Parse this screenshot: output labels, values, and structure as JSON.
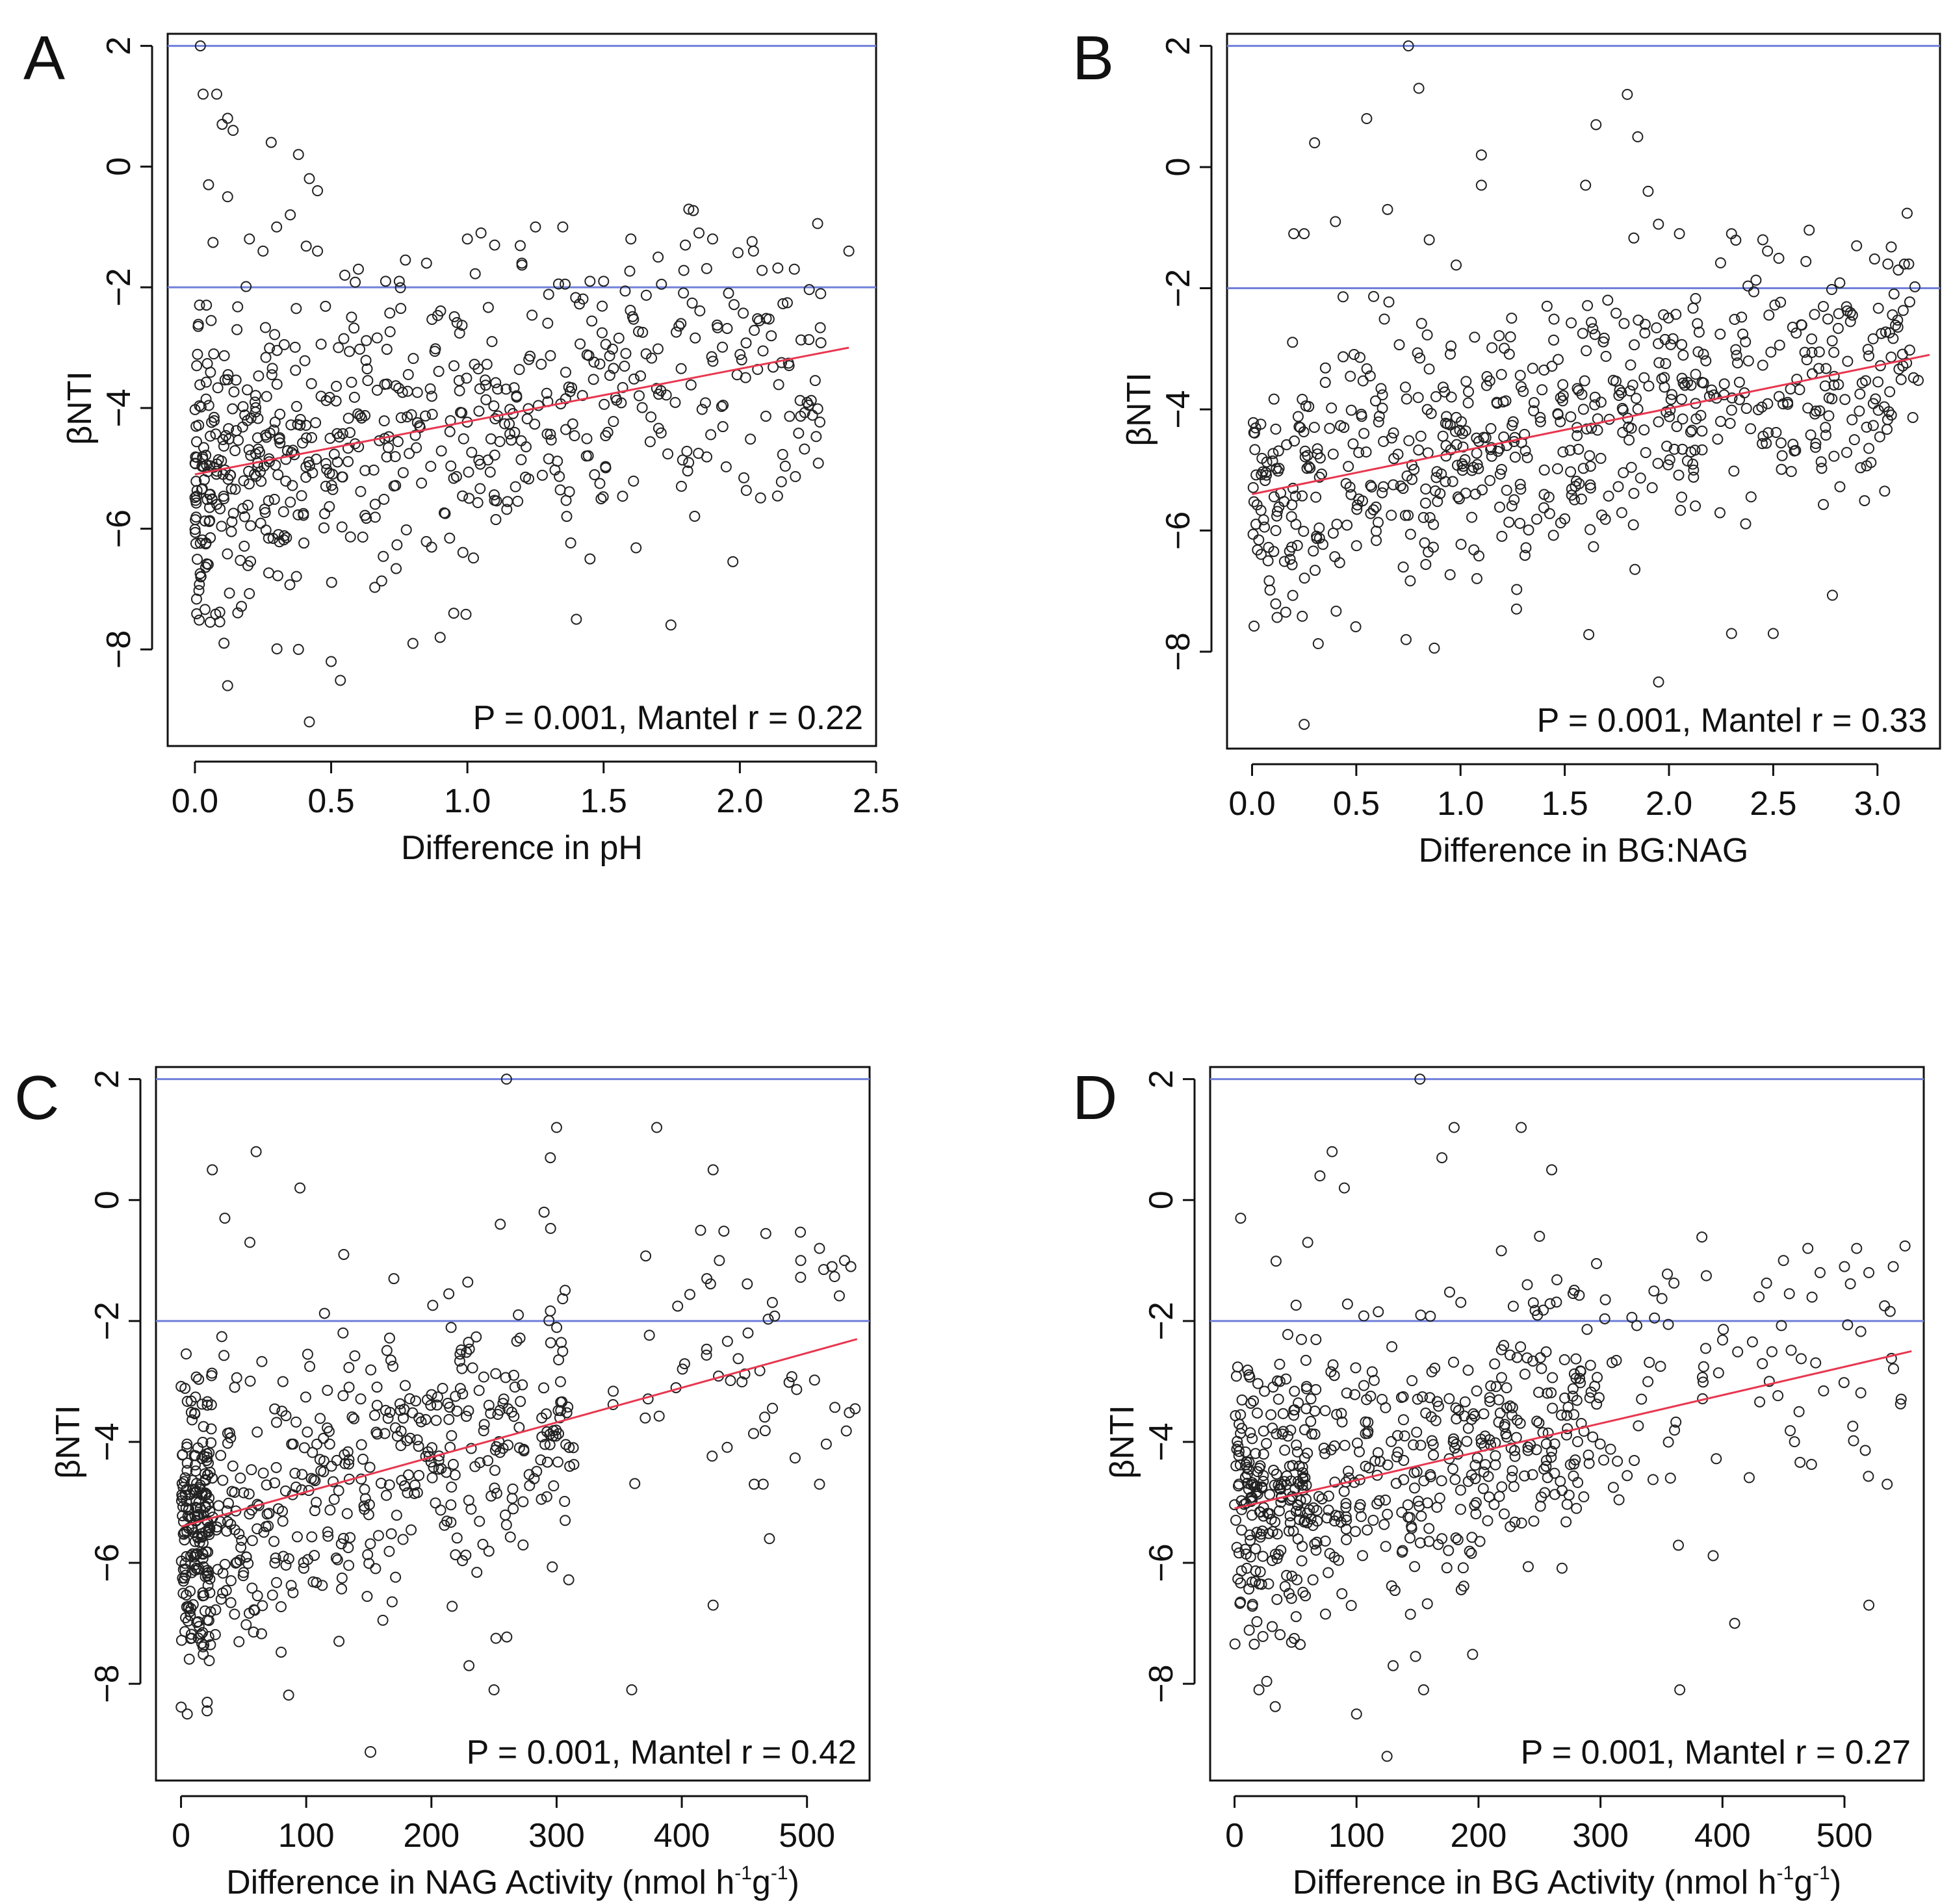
{
  "figure": {
    "colors": {
      "points": "#222222",
      "threshold_line": "#6f7fd9",
      "fit_line": "#e8374f",
      "axis": "#111111"
    }
  },
  "chart_data": [
    {
      "panel": "A",
      "type": "scatter",
      "title": "",
      "xlabel": "Difference in pH",
      "xlabel_super": [],
      "ylabel": "βNTI",
      "xlim": [
        -0.1,
        2.5
      ],
      "ylim": [
        -9.6,
        2.2
      ],
      "xticks": [
        0.0,
        0.5,
        1.0,
        1.5,
        2.0,
        2.5
      ],
      "xtick_labels": [
        "0.0",
        "0.5",
        "1.0",
        "1.5",
        "2.0",
        "2.5"
      ],
      "yticks": [
        -8,
        -6,
        -4,
        -2,
        0,
        2
      ],
      "ytick_labels": [
        "−8",
        "−6",
        "−4",
        "−2",
        "0",
        "2"
      ],
      "hlines": [
        2,
        -2
      ],
      "fit_line": {
        "x": [
          0.0,
          2.4
        ],
        "y": [
          -5.1,
          -3.0
        ]
      },
      "annotation": "P = 0.001, Mantel r = 0.22",
      "annotation_marker": false,
      "n_points": 640,
      "points": {
        "x": [
          0.02,
          0.03,
          0.08,
          0.1,
          0.12,
          0.14,
          0.28,
          0.38,
          0.42,
          0.45,
          0.05,
          0.12,
          0.2,
          0.25,
          0.3,
          0.35,
          0.45,
          0.55,
          0.6,
          0.7,
          0.75,
          0.85,
          1.0,
          1.05,
          1.1,
          1.2,
          1.25,
          1.35,
          1.45,
          1.5,
          1.6,
          1.7,
          1.8,
          1.85,
          1.9,
          2.05,
          2.2,
          2.4,
          0.12,
          0.42,
          0.5,
          0.38,
          0.95,
          1.4,
          1.45,
          0.8,
          0.9
        ],
        "y": [
          2.0,
          1.2,
          1.2,
          0.7,
          0.8,
          0.6,
          0.4,
          0.2,
          -0.2,
          -0.4,
          -0.3,
          -0.5,
          -1.2,
          -1.4,
          -1.0,
          -0.8,
          -1.4,
          -1.8,
          -1.7,
          -1.9,
          -1.9,
          -1.6,
          -1.2,
          -1.1,
          -1.3,
          -1.6,
          -1.0,
          -1.0,
          -1.9,
          -1.9,
          -1.2,
          -1.5,
          -1.3,
          -1.1,
          -1.2,
          -1.4,
          -1.7,
          -1.4,
          -8.6,
          -9.2,
          -8.2,
          -8.0,
          -7.4,
          -7.5,
          -6.5,
          -7.9,
          -7.8
        ]
      }
    },
    {
      "panel": "B",
      "type": "scatter",
      "title": "",
      "xlabel": "Difference in BG:NAG",
      "xlabel_super": [],
      "ylabel": "βNTI",
      "xlim": [
        -0.12,
        3.3
      ],
      "ylim": [
        -9.6,
        2.2
      ],
      "xticks": [
        0.0,
        0.5,
        1.0,
        1.5,
        2.0,
        2.5,
        3.0
      ],
      "xtick_labels": [
        "0.0",
        "0.5",
        "1.0",
        "1.5",
        "2.0",
        "2.5",
        "3.0"
      ],
      "yticks": [
        -8,
        -6,
        -4,
        -2,
        0,
        2
      ],
      "ytick_labels": [
        "−8",
        "−6",
        "−4",
        "−2",
        "0",
        "2"
      ],
      "hlines": [
        2,
        -2
      ],
      "fit_line": {
        "x": [
          0.0,
          3.25
        ],
        "y": [
          -5.4,
          -3.1
        ]
      },
      "annotation": "P = 0.001, Mantel r = 0.33",
      "annotation_marker": false,
      "n_points": 660,
      "points": {
        "x": [
          0.75,
          0.8,
          0.55,
          0.3,
          0.2,
          0.25,
          0.4,
          0.65,
          0.85,
          1.1,
          1.1,
          1.6,
          1.65,
          1.8,
          1.85,
          1.9,
          2.05,
          2.3,
          2.45,
          2.9,
          3.05,
          3.1,
          3.15,
          0.25,
          1.95,
          2.3,
          2.5
        ],
        "y": [
          2.0,
          1.3,
          0.8,
          0.4,
          -1.1,
          -1.1,
          -0.9,
          -0.7,
          -1.2,
          0.2,
          -0.3,
          -0.3,
          0.7,
          1.2,
          0.5,
          -0.4,
          -1.1,
          -1.1,
          -1.2,
          -1.3,
          -1.6,
          -1.7,
          -1.6,
          -9.2,
          -8.5,
          -7.7,
          -7.7
        ]
      }
    },
    {
      "panel": "C",
      "type": "scatter",
      "title": "",
      "xlabel": "Difference in NAG Activity (nmol h",
      "xlabel_super": [
        "-1",
        "g",
        "-1",
        ")"
      ],
      "ylabel": "βNTI",
      "xlim": [
        -20,
        550
      ],
      "ylim": [
        -9.6,
        2.2
      ],
      "xticks": [
        0,
        100,
        200,
        300,
        400,
        500
      ],
      "xtick_labels": [
        "0",
        "100",
        "200",
        "300",
        "400",
        "500"
      ],
      "yticks": [
        -8,
        -6,
        -4,
        -2,
        0,
        2
      ],
      "ytick_labels": [
        "−8",
        "−6",
        "−4",
        "−2",
        "0",
        "2"
      ],
      "hlines": [
        2,
        -2
      ],
      "fit_line": {
        "x": [
          0,
          540
        ],
        "y": [
          -5.4,
          -2.3
        ]
      },
      "annotation": "P = 0.001, Mantel r = 0.42",
      "annotation_marker": true,
      "n_points": 660,
      "points": {
        "x": [
          260,
          300,
          380,
          425,
          295,
          60,
          25,
          95,
          35,
          55,
          130,
          170,
          255,
          290,
          415,
          420,
          430,
          495,
          510,
          520,
          530,
          535,
          5,
          360,
          465,
          470,
          510,
          250,
          230,
          425
        ],
        "y": [
          2.0,
          1.2,
          1.2,
          0.5,
          0.7,
          0.8,
          0.5,
          0.2,
          -0.3,
          -0.7,
          -0.9,
          -1.3,
          -0.4,
          -0.2,
          -0.5,
          -1.3,
          -1.0,
          -1.0,
          -0.8,
          -1.1,
          -1.0,
          -1.1,
          -8.5,
          -8.1,
          -4.7,
          -5.6,
          -4.7,
          -8.1,
          -7.7,
          -6.7
        ]
      }
    },
    {
      "panel": "D",
      "type": "scatter",
      "title": "",
      "xlabel": "Difference in BG Activity (nmol h",
      "xlabel_super": [
        "-1",
        "g",
        "-1",
        ")"
      ],
      "ylabel": "βNTI",
      "xlim": [
        -20,
        565
      ],
      "ylim": [
        -9.6,
        2.2
      ],
      "xticks": [
        0,
        100,
        200,
        300,
        400,
        500
      ],
      "xtick_labels": [
        "0",
        "100",
        "200",
        "300",
        "400",
        "500"
      ],
      "yticks": [
        -8,
        -6,
        -4,
        -2,
        0,
        2
      ],
      "ytick_labels": [
        "−8",
        "−6",
        "−4",
        "−2",
        "0",
        "2"
      ],
      "hlines": [
        2,
        -2
      ],
      "fit_line": {
        "x": [
          0,
          555
        ],
        "y": [
          -5.1,
          -2.5
        ]
      },
      "annotation": "P = 0.001, Mantel r = 0.27",
      "annotation_marker": false,
      "n_points": 660,
      "points": {
        "x": [
          152,
          235,
          180,
          170,
          80,
          70,
          90,
          60,
          5,
          260,
          250,
          240,
          470,
          480,
          500,
          510,
          520,
          540,
          450,
          430,
          20,
          100,
          130,
          155,
          125,
          365,
          410,
          520,
          535
        ],
        "y": [
          2.0,
          1.2,
          1.2,
          0.7,
          0.8,
          0.4,
          0.2,
          -0.7,
          -0.3,
          0.5,
          -0.6,
          -1.4,
          -0.8,
          -1.2,
          -1.1,
          -0.8,
          -1.2,
          -1.1,
          -1.0,
          -1.6,
          -8.1,
          -8.5,
          -7.7,
          -8.1,
          -9.2,
          -8.1,
          -7.0,
          -6.7,
          -4.7
        ]
      }
    }
  ]
}
